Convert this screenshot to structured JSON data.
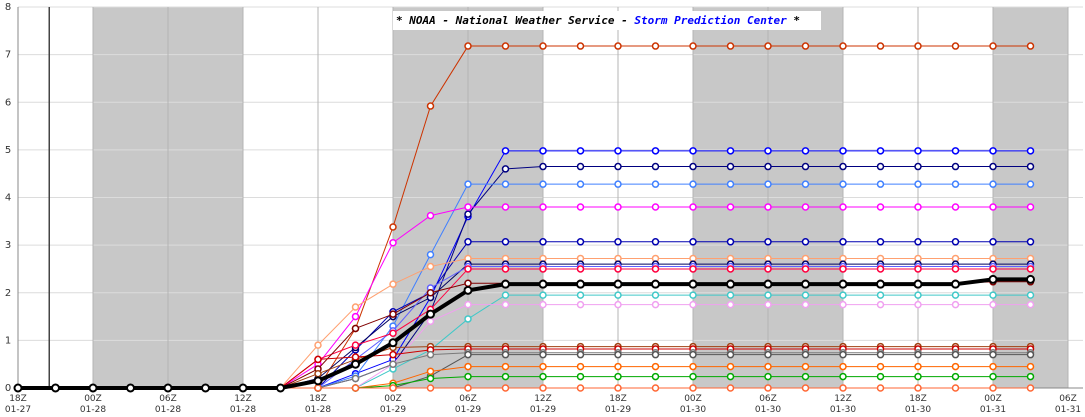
{
  "chart_data": {
    "type": "line",
    "title_parts": [
      {
        "text": "* NOAA - National Weather Service - ",
        "color": "#000000"
      },
      {
        "text": "Storm Prediction Center",
        "color": "#0000ff"
      },
      {
        "text": " *",
        "color": "#000000"
      }
    ],
    "x": [
      0,
      3,
      6,
      9,
      12,
      15,
      18,
      21,
      24,
      27,
      30,
      33,
      36,
      39,
      42,
      45,
      48,
      51,
      54,
      57,
      60,
      63,
      66,
      69,
      72,
      75,
      78,
      81
    ],
    "xlim": [
      0,
      84
    ],
    "xticks": [
      {
        "value": 0,
        "label": "18Z\n01-27"
      },
      {
        "value": 6,
        "label": "00Z\n01-28"
      },
      {
        "value": 12,
        "label": "06Z\n01-28"
      },
      {
        "value": 18,
        "label": "12Z\n01-28"
      },
      {
        "value": 24,
        "label": "18Z\n01-28"
      },
      {
        "value": 30,
        "label": "00Z\n01-29"
      },
      {
        "value": 36,
        "label": "06Z\n01-29"
      },
      {
        "value": 42,
        "label": "12Z\n01-29"
      },
      {
        "value": 48,
        "label": "18Z\n01-29"
      },
      {
        "value": 54,
        "label": "00Z\n01-30"
      },
      {
        "value": 60,
        "label": "06Z\n01-30"
      },
      {
        "value": 66,
        "label": "12Z\n01-30"
      },
      {
        "value": 72,
        "label": "18Z\n01-30"
      },
      {
        "value": 78,
        "label": "00Z\n01-31"
      },
      {
        "value": 84,
        "label": "06Z\n01-31"
      }
    ],
    "ylim": [
      0,
      8
    ],
    "yticks": [
      0,
      1,
      2,
      3,
      4,
      5,
      6,
      7,
      8
    ],
    "grid": true,
    "shaded_x": [
      [
        6,
        18
      ],
      [
        30,
        42
      ],
      [
        54,
        66
      ],
      [
        78,
        84
      ]
    ],
    "now_line_x": 2.5,
    "series": [
      {
        "color": "#cc3300",
        "values": [
          0,
          0,
          0,
          0,
          0,
          0,
          0,
          0,
          0,
          1.25,
          3.38,
          5.92,
          7.18,
          7.18,
          7.18,
          7.18,
          7.18,
          7.18,
          7.18,
          7.18,
          7.18,
          7.18,
          7.18,
          7.18,
          7.18,
          7.18,
          7.18,
          7.18
        ]
      },
      {
        "color": "#0000ff",
        "values": [
          0,
          0,
          0,
          0,
          0,
          0,
          0,
          0,
          0,
          0.3,
          0.6,
          1.9,
          3.6,
          4.98,
          4.98,
          4.98,
          4.98,
          4.98,
          4.98,
          4.98,
          4.98,
          4.98,
          4.98,
          4.98,
          4.98,
          4.98,
          4.98,
          4.98
        ]
      },
      {
        "color": "#000080",
        "values": [
          0,
          0,
          0,
          0,
          0,
          0,
          0,
          0,
          0,
          0.2,
          0.5,
          1.6,
          3.65,
          4.6,
          4.65,
          4.65,
          4.65,
          4.65,
          4.65,
          4.65,
          4.65,
          4.65,
          4.65,
          4.65,
          4.65,
          4.65,
          4.65,
          4.65
        ]
      },
      {
        "color": "#4080ff",
        "values": [
          0,
          0,
          0,
          0,
          0,
          0,
          0,
          0,
          0,
          0.25,
          1.3,
          2.8,
          4.28,
          4.28,
          4.28,
          4.28,
          4.28,
          4.28,
          4.28,
          4.28,
          4.28,
          4.28,
          4.28,
          4.28,
          4.28,
          4.28,
          4.28,
          4.28
        ]
      },
      {
        "color": "#ff00ff",
        "values": [
          0,
          0,
          0,
          0,
          0,
          0,
          0,
          0,
          0.5,
          1.5,
          3.05,
          3.62,
          3.8,
          3.8,
          3.8,
          3.8,
          3.8,
          3.8,
          3.8,
          3.8,
          3.8,
          3.8,
          3.8,
          3.8,
          3.8,
          3.8,
          3.8,
          3.8
        ]
      },
      {
        "color": "#0000b0",
        "values": [
          0,
          0,
          0,
          0,
          0,
          0,
          0,
          0,
          0,
          0.8,
          1.6,
          2.0,
          3.07,
          3.07,
          3.07,
          3.07,
          3.07,
          3.07,
          3.07,
          3.07,
          3.07,
          3.07,
          3.07,
          3.07,
          3.07,
          3.07,
          3.07,
          3.07
        ]
      },
      {
        "color": "#ffa070",
        "values": [
          0,
          0,
          0,
          0,
          0,
          0,
          0,
          0,
          0.9,
          1.7,
          2.18,
          2.55,
          2.72,
          2.72,
          2.72,
          2.72,
          2.72,
          2.72,
          2.72,
          2.72,
          2.72,
          2.72,
          2.72,
          2.72,
          2.72,
          2.72,
          2.72,
          2.72
        ]
      },
      {
        "color": "#000060",
        "values": [
          0,
          0,
          0,
          0,
          0,
          0,
          0,
          0,
          0.2,
          0.85,
          1.5,
          1.9,
          2.6,
          2.6,
          2.6,
          2.6,
          2.6,
          2.6,
          2.6,
          2.6,
          2.6,
          2.6,
          2.6,
          2.6,
          2.6,
          2.6,
          2.6,
          2.6
        ]
      },
      {
        "color": "#6060ff",
        "values": [
          0,
          0,
          0,
          0,
          0,
          0,
          0,
          0,
          0,
          0.6,
          1.2,
          2.1,
          2.55,
          2.55,
          2.55,
          2.55,
          2.55,
          2.55,
          2.55,
          2.55,
          2.55,
          2.55,
          2.55,
          2.55,
          2.55,
          2.55,
          2.55,
          2.55
        ]
      },
      {
        "color": "#ff0040",
        "values": [
          0,
          0,
          0,
          0,
          0,
          0,
          0,
          0,
          0.6,
          0.9,
          1.15,
          1.65,
          2.5,
          2.5,
          2.5,
          2.5,
          2.5,
          2.5,
          2.5,
          2.5,
          2.5,
          2.5,
          2.5,
          2.5,
          2.5,
          2.5,
          2.5,
          2.5
        ]
      },
      {
        "color": "#800000",
        "values": [
          0,
          0,
          0,
          0,
          0,
          0,
          0,
          0,
          0.4,
          1.25,
          1.55,
          2.0,
          2.2,
          2.2,
          2.2,
          2.2,
          2.2,
          2.2,
          2.2,
          2.2,
          2.2,
          2.2,
          2.2,
          2.2,
          2.2,
          2.2,
          2.23,
          2.23
        ]
      },
      {
        "color": "#40c8c8",
        "values": [
          0,
          0,
          0,
          0,
          0,
          0,
          0,
          0,
          0,
          0,
          0.4,
          0.8,
          1.45,
          1.95,
          1.95,
          1.95,
          1.95,
          1.95,
          1.95,
          1.95,
          1.95,
          1.95,
          1.95,
          1.95,
          1.95,
          1.95,
          1.95,
          1.95
        ]
      },
      {
        "color": "#f0a0f0",
        "values": [
          0,
          0,
          0,
          0,
          0,
          0,
          0,
          0,
          0,
          0,
          0.5,
          1.4,
          1.75,
          1.75,
          1.75,
          1.75,
          1.75,
          1.75,
          1.75,
          1.75,
          1.75,
          1.75,
          1.75,
          1.75,
          1.75,
          1.75,
          1.75,
          1.75
        ]
      },
      {
        "color": "#a04010",
        "values": [
          0,
          0,
          0,
          0,
          0,
          0,
          0,
          0,
          0.3,
          0.6,
          0.85,
          0.87,
          0.87,
          0.87,
          0.87,
          0.87,
          0.87,
          0.87,
          0.87,
          0.87,
          0.87,
          0.87,
          0.87,
          0.87,
          0.87,
          0.87,
          0.87,
          0.87
        ]
      },
      {
        "color": "#cc0000",
        "values": [
          0,
          0,
          0,
          0,
          0,
          0,
          0,
          0,
          0.6,
          0.65,
          0.7,
          0.8,
          0.82,
          0.82,
          0.82,
          0.82,
          0.82,
          0.82,
          0.82,
          0.82,
          0.82,
          0.82,
          0.82,
          0.82,
          0.82,
          0.82,
          0.82,
          0.82
        ]
      },
      {
        "color": "#7a7a7a",
        "values": [
          0,
          0,
          0,
          0,
          0,
          0,
          0,
          0,
          0,
          0.2,
          0.5,
          0.7,
          0.74,
          0.74,
          0.74,
          0.74,
          0.74,
          0.74,
          0.74,
          0.74,
          0.74,
          0.74,
          0.74,
          0.74,
          0.74,
          0.74,
          0.74,
          0.74
        ]
      },
      {
        "color": "#555555",
        "values": [
          0,
          0,
          0,
          0,
          0,
          0,
          0,
          0,
          0,
          0,
          0,
          0.25,
          0.7,
          0.7,
          0.7,
          0.7,
          0.7,
          0.7,
          0.7,
          0.7,
          0.7,
          0.7,
          0.7,
          0.7,
          0.7,
          0.7,
          0.7,
          0.7
        ]
      },
      {
        "color": "#ff6600",
        "values": [
          0,
          0,
          0,
          0,
          0,
          0,
          0,
          0,
          0,
          0,
          0.1,
          0.35,
          0.45,
          0.45,
          0.45,
          0.45,
          0.45,
          0.45,
          0.45,
          0.45,
          0.45,
          0.45,
          0.45,
          0.45,
          0.45,
          0.45,
          0.45,
          0.45
        ]
      },
      {
        "color": "#00aa00",
        "values": [
          0,
          0,
          0,
          0,
          0,
          0,
          0,
          0,
          0,
          0,
          0.05,
          0.2,
          0.24,
          0.24,
          0.24,
          0.24,
          0.24,
          0.24,
          0.24,
          0.24,
          0.24,
          0.24,
          0.24,
          0.24,
          0.24,
          0.24,
          0.24,
          0.24
        ]
      },
      {
        "color": "#ff6633",
        "values": [
          0,
          0,
          0,
          0,
          0,
          0,
          0,
          0,
          0,
          0,
          0,
          0,
          0,
          0,
          0,
          0,
          0,
          0,
          0,
          0,
          0,
          0,
          0,
          0,
          0,
          0,
          0,
          0
        ]
      },
      {
        "color": "#000000",
        "line_width": 4,
        "values": [
          0,
          0,
          0,
          0,
          0,
          0,
          0,
          0,
          0.15,
          0.5,
          0.95,
          1.55,
          2.05,
          2.18,
          2.18,
          2.18,
          2.18,
          2.18,
          2.18,
          2.18,
          2.18,
          2.18,
          2.18,
          2.18,
          2.18,
          2.18,
          2.28,
          2.28
        ]
      }
    ]
  }
}
